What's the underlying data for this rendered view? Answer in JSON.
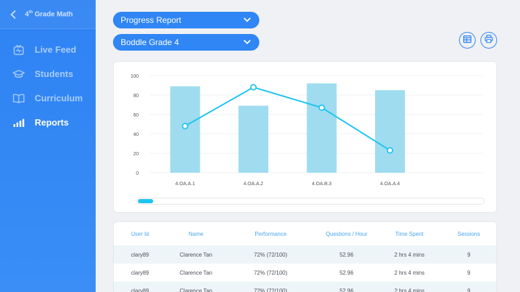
{
  "sidebar": {
    "title_main": "4",
    "title_sup": "th",
    "title_rest": " Grade Math",
    "items": [
      {
        "label": "Live Feed",
        "icon": "live-feed-icon"
      },
      {
        "label": "Students",
        "icon": "graduation-cap-icon"
      },
      {
        "label": "Curriculum",
        "icon": "book-icon"
      },
      {
        "label": "Reports",
        "icon": "bar-chart-icon",
        "active": true
      }
    ]
  },
  "filters": {
    "report_type": "Progress Report",
    "class_name": "Boddle Grade 4"
  },
  "toolbar": {
    "table_view_icon": "table-icon",
    "print_icon": "printer-icon"
  },
  "colors": {
    "accent": "#2f86f4",
    "bar": "#9fdcef",
    "line": "#1ec4f0"
  },
  "chart_data": {
    "type": "bar",
    "categories": [
      "4.OA.A.1",
      "4.OA.A.2",
      "4.OA.B.3",
      "4.OA.A.4"
    ],
    "series": [
      {
        "type": "bar",
        "values": [
          89,
          69,
          92,
          85
        ]
      },
      {
        "type": "line",
        "values": [
          48,
          88,
          67,
          23
        ]
      }
    ],
    "yticks": [
      0,
      20,
      40,
      60,
      80,
      100
    ],
    "ylim": [
      0,
      100
    ],
    "grid": true
  },
  "table": {
    "columns": [
      "User Id",
      "Name",
      "Performance",
      "Questions / Hour",
      "Time Spent",
      "Sessions"
    ],
    "rows": [
      [
        "clary89",
        "Clarence Tan",
        "72% (72/100)",
        "52.96",
        "2 hrs 4 mins",
        "9"
      ],
      [
        "clary89",
        "Clarence Tan",
        "72% (72/100)",
        "52.96",
        "2 hrs 4 mins",
        "9"
      ],
      [
        "clary89",
        "Clarence Tan",
        "72% (72/100)",
        "52.96",
        "2 hrs 4 mins",
        "9"
      ]
    ]
  }
}
